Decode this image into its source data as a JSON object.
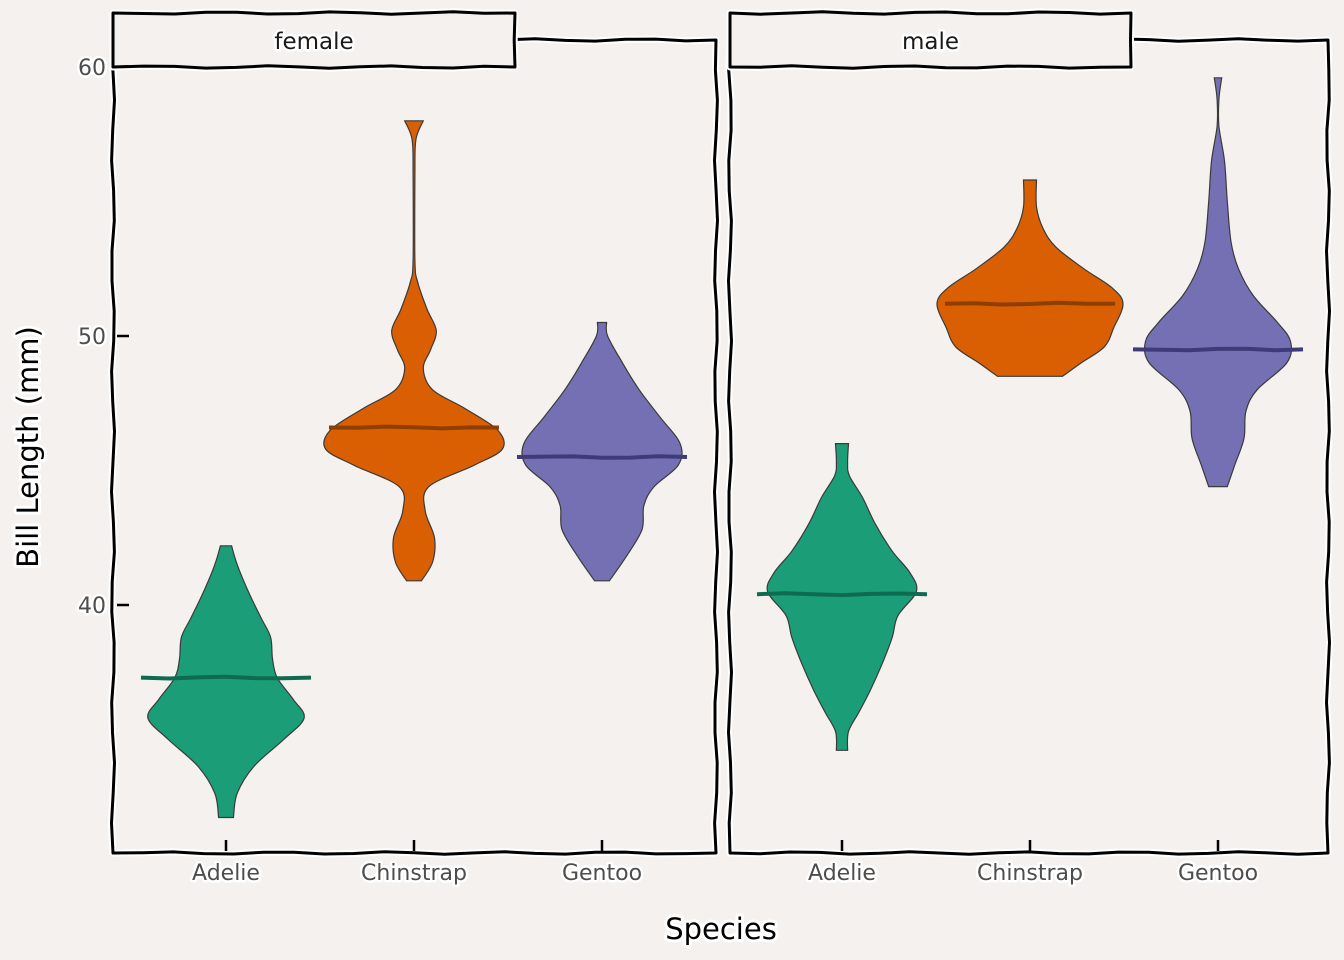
{
  "chart_data": {
    "type": "violin",
    "title": "",
    "xlabel": "Species",
    "ylabel": "Bill Length (mm)",
    "ylim": [
      31,
      62
    ],
    "yticks": [
      40,
      50,
      60
    ],
    "grid": false,
    "legend": "none",
    "categories": [
      "Adelie",
      "Chinstrap",
      "Gentoo"
    ],
    "colors": {
      "Adelie": {
        "fill": "#1b9e77",
        "median": "#0f6b4f"
      },
      "Chinstrap": {
        "fill": "#d95f02",
        "median": "#8f3e02"
      },
      "Gentoo": {
        "fill": "#7570b3",
        "median": "#3f3b7a"
      }
    },
    "panels": [
      {
        "facet": "female",
        "violins": [
          {
            "species": "Adelie",
            "min": 32.1,
            "max": 42.2,
            "median": 37.3,
            "profile": [
              [
                32.1,
                0.08
              ],
              [
                33.0,
                0.12
              ],
              [
                34.0,
                0.3
              ],
              [
                35.0,
                0.62
              ],
              [
                35.8,
                0.84
              ],
              [
                36.5,
                0.72
              ],
              [
                37.3,
                0.55
              ],
              [
                38.0,
                0.5
              ],
              [
                38.8,
                0.48
              ],
              [
                39.5,
                0.38
              ],
              [
                40.5,
                0.24
              ],
              [
                41.5,
                0.12
              ],
              [
                42.2,
                0.06
              ]
            ]
          },
          {
            "species": "Chinstrap",
            "min": 40.9,
            "max": 58.0,
            "median": 46.6,
            "profile": [
              [
                40.9,
                0.08
              ],
              [
                41.6,
                0.2
              ],
              [
                42.5,
                0.22
              ],
              [
                43.5,
                0.12
              ],
              [
                44.4,
                0.16
              ],
              [
                45.2,
                0.65
              ],
              [
                45.8,
                0.95
              ],
              [
                46.5,
                0.9
              ],
              [
                47.3,
                0.55
              ],
              [
                48.0,
                0.2
              ],
              [
                48.8,
                0.1
              ],
              [
                49.5,
                0.18
              ],
              [
                50.2,
                0.24
              ],
              [
                51.0,
                0.14
              ],
              [
                52.0,
                0.04
              ],
              [
                52.8,
                0.01
              ],
              [
                56.0,
                0.01
              ],
              [
                57.3,
                0.02
              ],
              [
                58.0,
                0.1
              ]
            ]
          },
          {
            "species": "Gentoo",
            "min": 40.9,
            "max": 50.5,
            "median": 45.5,
            "profile": [
              [
                40.9,
                0.08
              ],
              [
                41.8,
                0.26
              ],
              [
                42.8,
                0.43
              ],
              [
                43.7,
                0.45
              ],
              [
                44.4,
                0.56
              ],
              [
                45.2,
                0.82
              ],
              [
                46.0,
                0.84
              ],
              [
                47.0,
                0.62
              ],
              [
                48.0,
                0.4
              ],
              [
                49.0,
                0.22
              ],
              [
                50.0,
                0.06
              ],
              [
                50.5,
                0.05
              ]
            ]
          }
        ]
      },
      {
        "facet": "male",
        "violins": [
          {
            "species": "Adelie",
            "min": 34.6,
            "max": 46.0,
            "median": 40.4,
            "profile": [
              [
                34.6,
                0.06
              ],
              [
                35.3,
                0.07
              ],
              [
                36.0,
                0.18
              ],
              [
                36.8,
                0.3
              ],
              [
                37.8,
                0.43
              ],
              [
                38.8,
                0.54
              ],
              [
                39.6,
                0.6
              ],
              [
                40.5,
                0.8
              ],
              [
                41.2,
                0.73
              ],
              [
                42.0,
                0.54
              ],
              [
                43.0,
                0.36
              ],
              [
                44.0,
                0.22
              ],
              [
                44.8,
                0.08
              ],
              [
                45.3,
                0.06
              ],
              [
                46.0,
                0.07
              ]
            ]
          },
          {
            "species": "Chinstrap",
            "min": 48.5,
            "max": 55.8,
            "median": 51.2,
            "profile": [
              [
                48.5,
                0.35
              ],
              [
                49.0,
                0.55
              ],
              [
                49.6,
                0.8
              ],
              [
                50.3,
                0.9
              ],
              [
                51.2,
                1.0
              ],
              [
                51.8,
                0.88
              ],
              [
                52.5,
                0.58
              ],
              [
                53.3,
                0.28
              ],
              [
                54.0,
                0.14
              ],
              [
                54.8,
                0.07
              ],
              [
                55.8,
                0.07
              ]
            ]
          },
          {
            "species": "Gentoo",
            "min": 44.4,
            "max": 59.6,
            "median": 49.5,
            "profile": [
              [
                44.4,
                0.1
              ],
              [
                45.2,
                0.18
              ],
              [
                46.2,
                0.28
              ],
              [
                47.2,
                0.3
              ],
              [
                48.0,
                0.42
              ],
              [
                49.0,
                0.74
              ],
              [
                49.8,
                0.78
              ],
              [
                50.5,
                0.64
              ],
              [
                51.5,
                0.38
              ],
              [
                52.5,
                0.22
              ],
              [
                53.5,
                0.14
              ],
              [
                55.0,
                0.1
              ],
              [
                56.5,
                0.07
              ],
              [
                57.8,
                0.01
              ],
              [
                58.8,
                0.01
              ],
              [
                59.6,
                0.04
              ]
            ]
          }
        ]
      }
    ]
  }
}
